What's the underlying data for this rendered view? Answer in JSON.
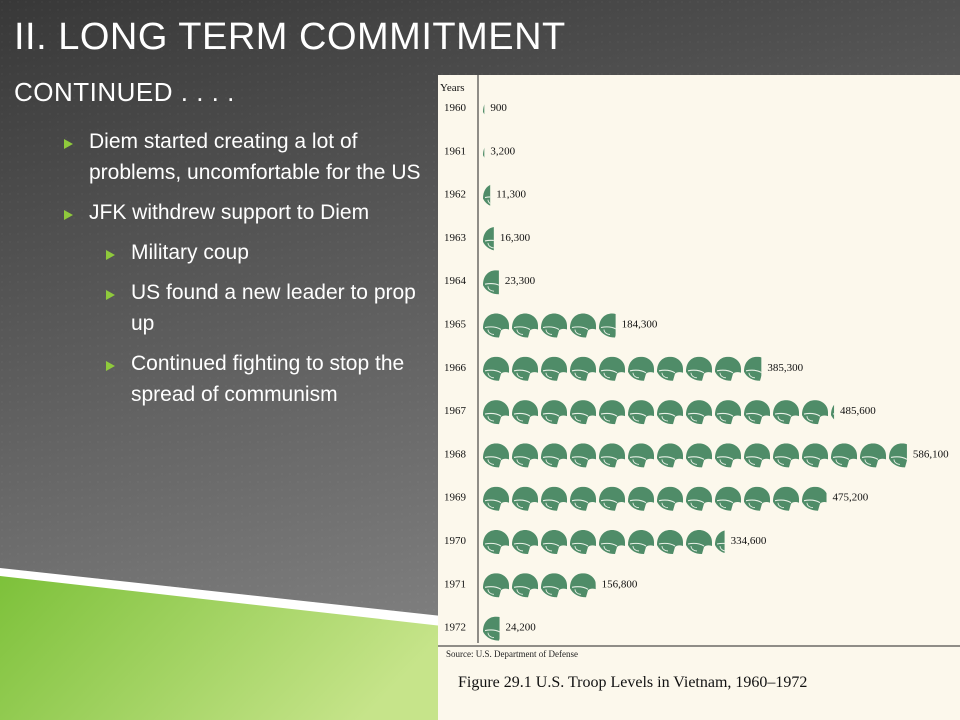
{
  "slide": {
    "title": "II. LONG TERM COMMITMENT",
    "subtitle": "CONTINUED . . . .",
    "bullets": [
      {
        "level": 1,
        "text": "Diem started creating a lot of problems, uncomfortable for the US"
      },
      {
        "level": 1,
        "text": "JFK withdrew support to Diem"
      },
      {
        "level": 2,
        "text": "Military coup"
      },
      {
        "level": 2,
        "text": "US found a new leader to prop up"
      },
      {
        "level": 2,
        "text": "Continued fighting to stop the spread of communism"
      }
    ]
  },
  "colors": {
    "accent": "#8fca3c",
    "helmet": "#4f8c68",
    "chart_bg": "#fcf8ec",
    "slide_bg_top": "#3c3c3c",
    "slide_bg_bottom": "#7a7a7a"
  },
  "chart_data": {
    "type": "bar",
    "style": "pictogram",
    "icon": "helmet-icon",
    "units_per_icon": 40000,
    "ylabel": "Years",
    "categories": [
      "1960",
      "1961",
      "1962",
      "1963",
      "1964",
      "1965",
      "1966",
      "1967",
      "1968",
      "1969",
      "1970",
      "1971",
      "1972"
    ],
    "values": [
      900,
      3200,
      11300,
      16300,
      23300,
      184300,
      385300,
      485600,
      586100,
      475200,
      334600,
      156800,
      24200
    ],
    "value_labels": [
      "900",
      "3,200",
      "11,300",
      "16,300",
      "23,300",
      "184,300",
      "385,300",
      "485,600",
      "586,100",
      "475,200",
      "334,600",
      "156,800",
      "24,200"
    ],
    "source": "Source: U.S. Department of Defense",
    "caption": "Figure 29.1  U.S. Troop Levels in Vietnam, 1960–1972"
  }
}
